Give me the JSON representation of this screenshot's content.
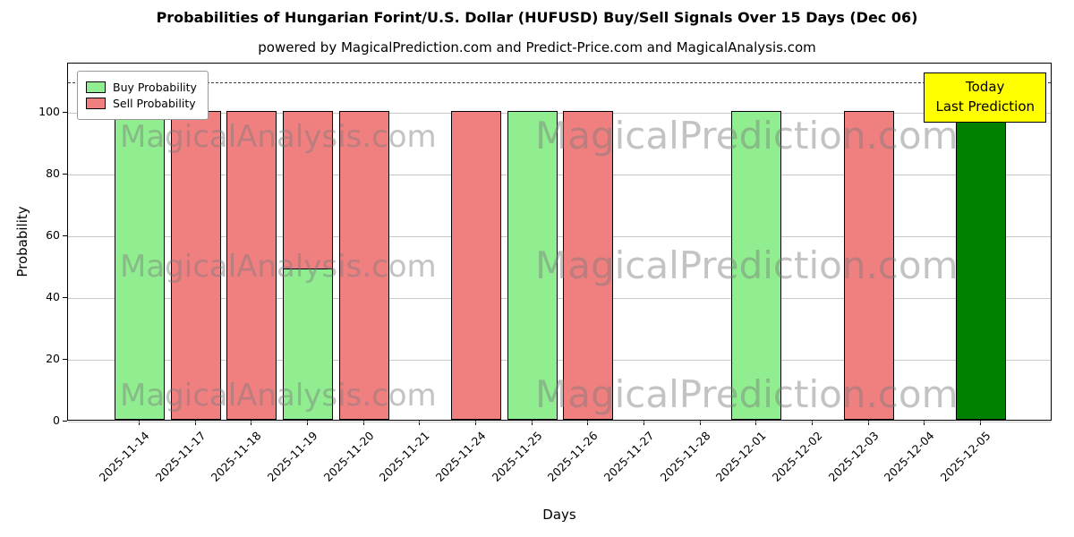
{
  "title": "Probabilities of Hungarian Forint/U.S. Dollar (HUFUSD) Buy/Sell Signals Over 15 Days (Dec 06)",
  "subtitle": "powered by MagicalPrediction.com and Predict-Price.com and MagicalAnalysis.com",
  "legend": {
    "buy": "Buy Probability",
    "sell": "Sell Probability"
  },
  "annotation": {
    "line1": "Today",
    "line2": "Last Prediction"
  },
  "watermarks": {
    "left": "MagicalAnalysis.com",
    "right": "MagicalPrediction.com"
  },
  "colors": {
    "buy": "#90ee90",
    "sell": "#f08080",
    "today": "#008000",
    "annotation_bg": "#ffff00",
    "gridline": "#c8c8c8"
  },
  "chart_data": {
    "type": "bar",
    "title": "Probabilities of Hungarian Forint/U.S. Dollar (HUFUSD) Buy/Sell Signals Over 15 Days (Dec 06)",
    "xlabel": "Days",
    "ylabel": "Probability",
    "categories": [
      "2025-11-14",
      "2025-11-17",
      "2025-11-18",
      "2025-11-19",
      "2025-11-20",
      "2025-11-21",
      "2025-11-24",
      "2025-11-25",
      "2025-11-26",
      "2025-11-27",
      "2025-11-28",
      "2025-12-01",
      "2025-12-02",
      "2025-12-03",
      "2025-12-04",
      "2025-12-05"
    ],
    "series": [
      {
        "name": "Buy Probability",
        "values": [
          100,
          0,
          0,
          49,
          0,
          0,
          0,
          100,
          0,
          0,
          0,
          100,
          0,
          0,
          0,
          100
        ]
      },
      {
        "name": "Sell Probability",
        "values": [
          0,
          100,
          100,
          100,
          100,
          0,
          100,
          0,
          100,
          0,
          0,
          0,
          0,
          100,
          0,
          0
        ]
      }
    ],
    "today_index": 15,
    "ylim": [
      0,
      116
    ],
    "yticks": [
      0,
      20,
      40,
      60,
      80,
      100
    ],
    "dashed_line_y": 110,
    "grid": "horizontal",
    "legend_position": "upper left"
  }
}
